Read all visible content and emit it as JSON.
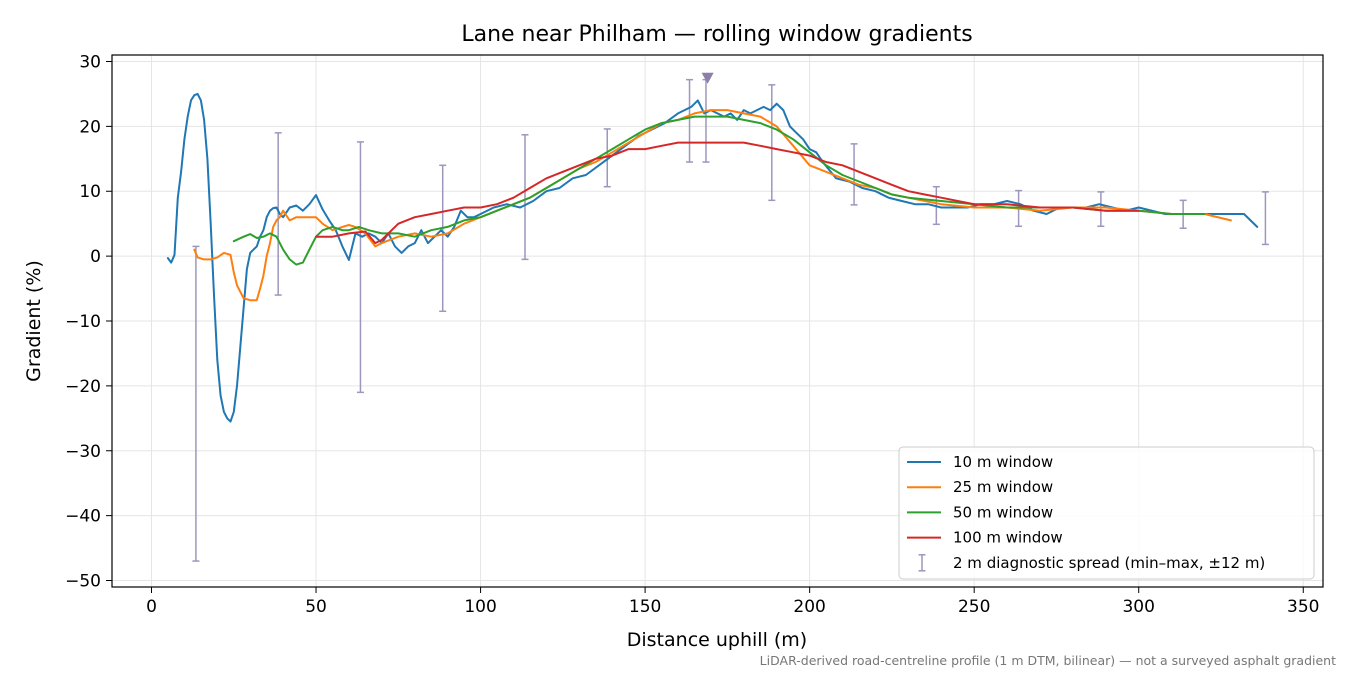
{
  "chart_data": {
    "type": "line",
    "title": "Lane near Philham — rolling window gradients",
    "xlabel": "Distance uphill (m)",
    "ylabel": "Gradient (%)",
    "xlim": [
      -12,
      356
    ],
    "ylim": [
      -51,
      31
    ],
    "xticks": [
      0,
      50,
      100,
      150,
      200,
      250,
      300,
      350
    ],
    "yticks": [
      -50,
      -40,
      -30,
      -20,
      -10,
      0,
      10,
      20,
      30
    ],
    "ytick_labels": [
      "−50",
      "−40",
      "−30",
      "−20",
      "−10",
      "0",
      "10",
      "20",
      "30"
    ],
    "grid": true,
    "legend_position": "lower right",
    "caption": "LiDAR-derived road-centreline profile (1 m DTM, bilinear) — not a surveyed asphalt gradient",
    "series": [
      {
        "name": "10 m window",
        "color": "#1f77b4",
        "x": [
          5,
          6,
          7,
          8,
          9,
          10,
          11,
          12,
          13,
          14,
          15,
          16,
          17,
          18,
          19,
          20,
          21,
          22,
          23,
          24,
          25,
          26,
          27,
          28,
          29,
          30,
          31,
          32,
          33,
          34,
          35,
          36,
          37,
          38,
          39,
          40,
          42,
          44,
          46,
          48,
          50,
          52,
          54,
          56,
          58,
          60,
          62,
          64,
          66,
          68,
          70,
          72,
          74,
          76,
          78,
          80,
          82,
          84,
          86,
          88,
          90,
          92,
          94,
          96,
          98,
          100,
          104,
          108,
          112,
          116,
          120,
          124,
          128,
          132,
          136,
          140,
          144,
          148,
          152,
          156,
          160,
          162,
          164,
          166,
          168,
          170,
          172,
          174,
          176,
          178,
          180,
          182,
          184,
          186,
          188,
          190,
          192,
          194,
          196,
          198,
          200,
          202,
          204,
          208,
          212,
          216,
          220,
          224,
          228,
          232,
          236,
          240,
          244,
          248,
          252,
          256,
          260,
          264,
          268,
          272,
          276,
          280,
          284,
          288,
          292,
          296,
          300,
          304,
          308,
          312,
          316,
          320,
          324,
          328,
          332,
          336
        ],
        "y": [
          -0.3,
          -1,
          0.2,
          9,
          13,
          18,
          21.5,
          24,
          24.8,
          25,
          24,
          21,
          15,
          5,
          -6,
          -16,
          -21.5,
          -24,
          -25,
          -25.5,
          -24,
          -20,
          -14,
          -8,
          -2,
          0.5,
          1,
          1.5,
          3,
          4,
          6,
          7,
          7.4,
          7.5,
          6.5,
          6,
          7.5,
          7.8,
          7,
          8,
          9.4,
          7.2,
          5.5,
          4,
          1.5,
          -0.6,
          3.5,
          3,
          3.5,
          3,
          2,
          3.5,
          1.5,
          0.5,
          1.5,
          2,
          4,
          2,
          3,
          4,
          3,
          4.5,
          7,
          6,
          6,
          6.5,
          7.5,
          8,
          7.5,
          8.5,
          10,
          10.5,
          12,
          12.5,
          14,
          15.5,
          17,
          18.5,
          19.5,
          20.5,
          22,
          22.5,
          23,
          24,
          22,
          22.5,
          22,
          21.5,
          22,
          21,
          22.5,
          22,
          22.5,
          23,
          22.5,
          23.5,
          22.5,
          20,
          19,
          18,
          16.5,
          16,
          14.5,
          12,
          11.5,
          10.5,
          10,
          9,
          8.5,
          8,
          8,
          7.5,
          7.5,
          7.5,
          8,
          8,
          8.5,
          8,
          7,
          6.5,
          7.5,
          7.5,
          7.5,
          8,
          7.5,
          7,
          7.5,
          7,
          6.5,
          6.5,
          6.5,
          6.5,
          6.5,
          6.5,
          6.5,
          4.5
        ]
      },
      {
        "name": "25 m window",
        "color": "#ff7f0e",
        "x": [
          13,
          14,
          16,
          18,
          20,
          22,
          24,
          25,
          26,
          27,
          28,
          30,
          32,
          33,
          34,
          35,
          36,
          37,
          38,
          39,
          40,
          42,
          44,
          46,
          48,
          50,
          52,
          55,
          58,
          60,
          62,
          65,
          68,
          70,
          75,
          80,
          85,
          90,
          95,
          100,
          105,
          110,
          115,
          120,
          125,
          130,
          135,
          140,
          145,
          150,
          155,
          160,
          165,
          170,
          175,
          180,
          185,
          190,
          195,
          200,
          205,
          210,
          215,
          220,
          225,
          230,
          235,
          240,
          250,
          260,
          270,
          280,
          290,
          300,
          310,
          320,
          328
        ],
        "y": [
          1,
          -0.2,
          -0.5,
          -0.5,
          -0.2,
          0.5,
          0.2,
          -2.5,
          -4.5,
          -5.5,
          -6.5,
          -6.8,
          -6.8,
          -5,
          -3,
          0,
          2,
          4.5,
          5.5,
          6,
          7,
          5.5,
          6,
          6,
          6,
          6,
          5,
          4,
          4.5,
          4.8,
          4.5,
          3.5,
          1.5,
          2,
          3,
          3.5,
          3,
          3.5,
          5,
          6,
          7,
          8,
          9,
          10.5,
          12,
          13.5,
          14.5,
          16,
          17.5,
          19,
          20.5,
          21,
          22,
          22.5,
          22.5,
          22,
          21.5,
          20,
          17,
          14,
          13,
          12,
          11,
          10.5,
          9.5,
          9,
          8.5,
          8,
          7.5,
          7.5,
          7,
          7.5,
          7.5,
          7,
          6.5,
          6.5,
          5.5
        ]
      },
      {
        "name": "50 m window",
        "color": "#2ca02c",
        "x": [
          25,
          28,
          30,
          32,
          34,
          36,
          38,
          40,
          42,
          44,
          46,
          48,
          50,
          52,
          55,
          58,
          60,
          63,
          66,
          70,
          75,
          80,
          85,
          90,
          95,
          100,
          105,
          110,
          115,
          120,
          125,
          130,
          135,
          140,
          145,
          150,
          155,
          160,
          165,
          170,
          175,
          180,
          185,
          190,
          195,
          200,
          205,
          210,
          215,
          220,
          225,
          230,
          240,
          250,
          260,
          270,
          280,
          290,
          300,
          310,
          320
        ],
        "y": [
          2.3,
          3,
          3.4,
          2.8,
          3,
          3.5,
          3,
          1,
          -0.5,
          -1.3,
          -1,
          1,
          3,
          4,
          4.5,
          4,
          4,
          4.5,
          4,
          3.5,
          3.5,
          3,
          4,
          4.5,
          5.5,
          6,
          7,
          8,
          9,
          10.5,
          12,
          13.5,
          15,
          16.5,
          18,
          19.5,
          20.5,
          21,
          21.5,
          21.5,
          21.5,
          21,
          20.5,
          19.5,
          18,
          16,
          14,
          12.5,
          11.5,
          10.5,
          9.5,
          9,
          8.5,
          8,
          7.5,
          7.5,
          7.5,
          7,
          7,
          6.5,
          6.5
        ]
      },
      {
        "name": "100 m window",
        "color": "#d62728",
        "x": [
          50,
          55,
          60,
          65,
          68,
          70,
          75,
          80,
          85,
          90,
          95,
          100,
          105,
          110,
          115,
          120,
          125,
          130,
          135,
          140,
          145,
          150,
          155,
          160,
          165,
          170,
          175,
          180,
          185,
          190,
          195,
          200,
          205,
          210,
          215,
          220,
          225,
          230,
          235,
          240,
          245,
          250,
          260,
          270,
          280,
          290,
          300
        ],
        "y": [
          3,
          3,
          3.5,
          3.8,
          2,
          2.5,
          5,
          6,
          6.5,
          7,
          7.5,
          7.5,
          8,
          9,
          10.5,
          12,
          13,
          14,
          15,
          15.5,
          16.5,
          16.5,
          17,
          17.5,
          17.5,
          17.5,
          17.5,
          17.5,
          17,
          16.5,
          16,
          15.5,
          14.5,
          14,
          13,
          12,
          11,
          10,
          9.5,
          9,
          8.5,
          8,
          8,
          7.5,
          7.5,
          7,
          7
        ]
      }
    ],
    "errorbars": {
      "name": "2 m diagnostic spread (min–max, ±12 m)",
      "color": "#9b97bd",
      "x": [
        13.5,
        38.5,
        63.5,
        88.5,
        113.5,
        138.5,
        163.5,
        168.5,
        188.5,
        213.5,
        238.5,
        263.5,
        288.5,
        313.5,
        338.5
      ],
      "low": [
        -47,
        -6,
        -21,
        -8.5,
        -0.5,
        10.7,
        14.5,
        14.5,
        8.6,
        7.9,
        4.9,
        4.6,
        4.6,
        4.3,
        1.8
      ],
      "high": [
        1.5,
        19,
        17.6,
        14,
        18.7,
        19.6,
        27.2,
        27.2,
        26.4,
        17.3,
        10.7,
        10.1,
        9.9,
        8.6,
        9.9
      ]
    },
    "marker": {
      "x": 169,
      "y": 27.5,
      "color": "#8c7fa8"
    }
  }
}
